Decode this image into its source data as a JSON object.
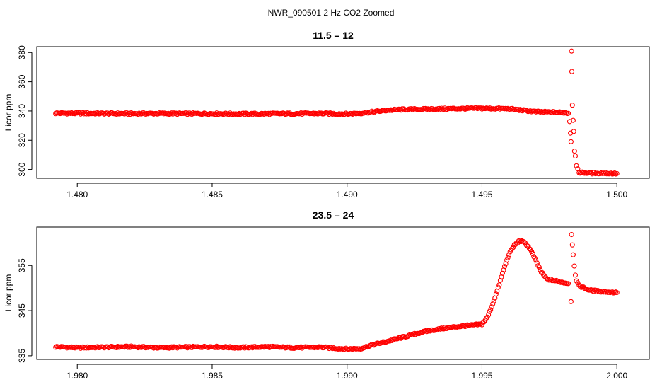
{
  "page_title": "NWR_090501  2 Hz CO2 Zoomed",
  "colors": {
    "points": "#ff0000",
    "axes": "#000000",
    "background": "#ffffff"
  },
  "chart_data": [
    {
      "type": "scatter",
      "title": "11.5 – 12",
      "xlabel": "",
      "ylabel": "Licor ppm",
      "xlim": [
        1.4785,
        1.5012
      ],
      "ylim": [
        294,
        384
      ],
      "xticks": [
        1.48,
        1.485,
        1.49,
        1.495,
        1.5
      ],
      "xtick_labels": [
        "1.480",
        "1.485",
        "1.490",
        "1.495",
        "1.500"
      ],
      "yticks": [
        300,
        320,
        340,
        360,
        380
      ],
      "ytick_labels": [
        "300",
        "320",
        "340",
        "360",
        "380"
      ],
      "grid": false,
      "marker": "open-circle",
      "series": [
        {
          "color": "#ff0000",
          "points": [
            [
              1.4792,
              338.5
            ],
            [
              1.48,
              338.4
            ],
            [
              1.481,
              338.3
            ],
            [
              1.482,
              338.2
            ],
            [
              1.483,
              338.3
            ],
            [
              1.484,
              338.2
            ],
            [
              1.485,
              338.2
            ],
            [
              1.486,
              338.0
            ],
            [
              1.487,
              338.1
            ],
            [
              1.488,
              338.2
            ],
            [
              1.489,
              338.3
            ],
            [
              1.49,
              338.0
            ],
            [
              1.4905,
              338.5
            ],
            [
              1.491,
              339.5
            ],
            [
              1.4915,
              340.5
            ],
            [
              1.492,
              341.0
            ],
            [
              1.493,
              341.3
            ],
            [
              1.494,
              341.6
            ],
            [
              1.495,
              341.8
            ],
            [
              1.496,
              341.5
            ],
            [
              1.4965,
              340.5
            ],
            [
              1.497,
              339.5
            ],
            [
              1.498,
              339.0
            ],
            [
              1.4982,
              338.5
            ],
            [
              1.49825,
              333.0
            ],
            [
              1.49828,
              325.0
            ],
            [
              1.4983,
              319.0
            ],
            [
              1.49832,
              381.0
            ],
            [
              1.49833,
              367.0
            ],
            [
              1.49835,
              344.0
            ],
            [
              1.49838,
              334.0
            ],
            [
              1.4984,
              326.0
            ],
            [
              1.49843,
              313.0
            ],
            [
              1.49846,
              309.0
            ],
            [
              1.4985,
              302.0
            ],
            [
              1.4986,
              298.0
            ],
            [
              1.499,
              297.5
            ],
            [
              1.4995,
              297.5
            ],
            [
              1.5,
              297.2
            ]
          ]
        }
      ]
    },
    {
      "type": "scatter",
      "title": "23.5 – 24",
      "xlabel": "",
      "ylabel": "Licor ppm",
      "xlim": [
        1.9785,
        2.0012
      ],
      "ylim": [
        334.2,
        363.5
      ],
      "xticks": [
        1.98,
        1.985,
        1.99,
        1.995,
        2.0
      ],
      "xtick_labels": [
        "1.980",
        "1.985",
        "1.990",
        "1.995",
        "2.000"
      ],
      "yticks": [
        335,
        345,
        355
      ],
      "ytick_labels": [
        "335",
        "345",
        "355"
      ],
      "grid": false,
      "marker": "open-circle",
      "series": [
        {
          "color": "#ff0000",
          "points": [
            [
              1.9792,
              337.0
            ],
            [
              1.98,
              336.8
            ],
            [
              1.981,
              336.9
            ],
            [
              1.982,
              337.0
            ],
            [
              1.983,
              336.8
            ],
            [
              1.984,
              336.9
            ],
            [
              1.985,
              337.0
            ],
            [
              1.986,
              336.8
            ],
            [
              1.987,
              337.0
            ],
            [
              1.988,
              336.8
            ],
            [
              1.989,
              336.9
            ],
            [
              1.99,
              336.5
            ],
            [
              1.9905,
              336.6
            ],
            [
              1.991,
              337.5
            ],
            [
              1.9915,
              338.2
            ],
            [
              1.992,
              339.0
            ],
            [
              1.9925,
              339.8
            ],
            [
              1.993,
              340.5
            ],
            [
              1.9935,
              341.0
            ],
            [
              1.994,
              341.4
            ],
            [
              1.9945,
              341.7
            ],
            [
              1.995,
              342.0
            ],
            [
              1.9952,
              343.5
            ],
            [
              1.9954,
              346.5
            ],
            [
              1.9956,
              350.0
            ],
            [
              1.9958,
              354.0
            ],
            [
              1.996,
              357.5
            ],
            [
              1.9962,
              359.5
            ],
            [
              1.9964,
              360.5
            ],
            [
              1.9966,
              360.0
            ],
            [
              1.9968,
              358.5
            ],
            [
              1.997,
              356.0
            ],
            [
              1.9972,
              353.5
            ],
            [
              1.9974,
              352.0
            ],
            [
              1.9978,
              351.5
            ],
            [
              1.9982,
              351.0
            ],
            [
              1.9983,
              347.0
            ],
            [
              1.99832,
              362.0
            ],
            [
              1.99835,
              359.5
            ],
            [
              1.99838,
              357.5
            ],
            [
              1.99842,
              355.0
            ],
            [
              1.99846,
              353.0
            ],
            [
              1.9985,
              351.5
            ],
            [
              1.9986,
              350.5
            ],
            [
              1.999,
              349.5
            ],
            [
              1.9995,
              349.2
            ],
            [
              2.0,
              349.0
            ]
          ]
        }
      ]
    }
  ]
}
